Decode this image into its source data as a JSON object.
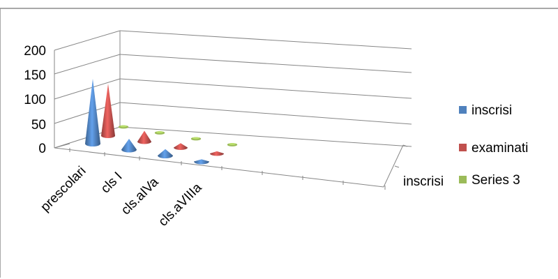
{
  "chart_data": {
    "type": "bar",
    "subtype": "3d-cone",
    "categories": [
      "prescolari",
      "cls I",
      "cls.aIVa",
      "cls.aVIIIa"
    ],
    "series": [
      {
        "name": "inscrisi",
        "values": [
          150,
          25,
          15,
          5
        ],
        "color": "#4f81bd"
      },
      {
        "name": "examinati",
        "values": [
          120,
          25,
          10,
          5
        ],
        "color": "#c0504d"
      },
      {
        "name": "Series 3",
        "values": [
          2,
          2,
          2,
          2
        ],
        "color": "#9bbb59"
      }
    ],
    "depth_axis_labels": [
      "inscrisi"
    ],
    "yticks": [
      "200",
      "150",
      "100",
      "50",
      "0"
    ],
    "ylim": [
      0,
      200
    ],
    "grid": true,
    "legend_position": "right",
    "colors": {
      "frame": "#d9d9d9",
      "grid": "#868686",
      "outer_border": "#8c8c8c"
    }
  }
}
